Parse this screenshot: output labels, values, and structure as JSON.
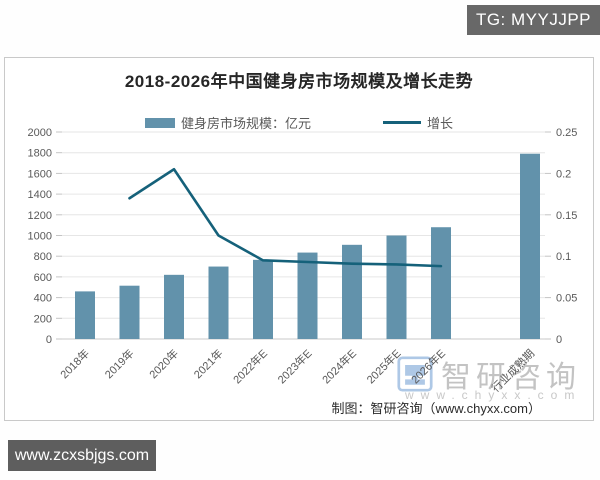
{
  "overlay": {
    "tg_badge": "TG: MYYJJPP",
    "site_badge": "www.zcxsbjgs.com"
  },
  "watermark": {
    "brand": "智研咨询",
    "url": "www.chyxx.com"
  },
  "footer": {
    "credit": "制图：智研咨询（www.chyxx.com）"
  },
  "chart_data": {
    "type": "bar",
    "title": "2018-2026年中国健身房市场规模及增长走势",
    "categories": [
      "2018年",
      "2019年",
      "2020年",
      "2021年",
      "2022年E",
      "2023年E",
      "2024年E",
      "2025年E",
      "2026年E",
      "行业成熟期"
    ],
    "series": [
      {
        "name": "健身房市场规模：亿元",
        "type": "bar",
        "axis": "left",
        "color": "#6292ab",
        "values": [
          460,
          515,
          620,
          700,
          765,
          835,
          910,
          1000,
          1080,
          1790
        ]
      },
      {
        "name": "增长",
        "type": "line",
        "axis": "right",
        "color": "#15617a",
        "values": [
          null,
          0.17,
          0.205,
          0.125,
          0.095,
          0.093,
          0.091,
          0.09,
          0.088,
          null
        ]
      }
    ],
    "left_axis": {
      "min": 0,
      "max": 2000,
      "step": 200
    },
    "right_axis": {
      "min": 0,
      "max": 0.25,
      "step": 0.05
    },
    "grid": true,
    "legend_position": "top",
    "extra_gap_before_last_bar": true,
    "axis_text_color": "#595959",
    "gridline_color": "#e6e6e6"
  }
}
